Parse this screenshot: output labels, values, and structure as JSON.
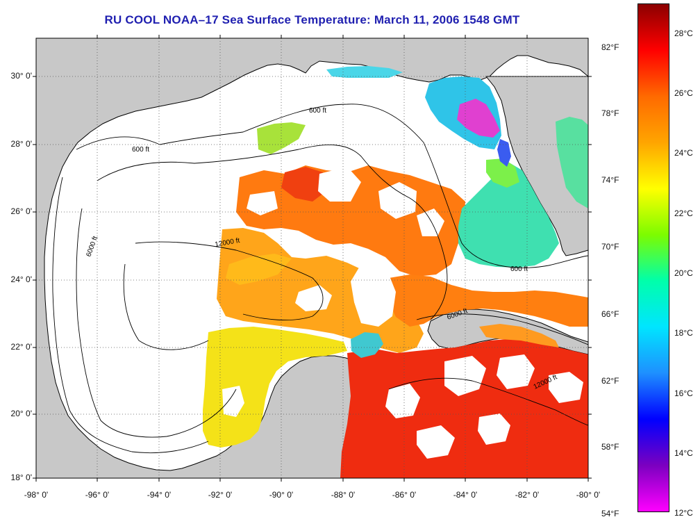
{
  "title": "RU COOL  NOAA–17  Sea Surface Temperature:  March 11, 2006 1548 GMT",
  "map": {
    "lon_range": [
      -98,
      -80
    ],
    "lat_range": [
      18,
      31
    ],
    "latitude_ticks": [
      "30° 0'",
      "28° 0'",
      "26° 0'",
      "24° 0'",
      "22° 0'",
      "20° 0'",
      "18° 0'"
    ],
    "longitude_ticks": [
      "-98° 0'",
      "-96° 0'",
      "-94° 0'",
      "-92° 0'",
      "-90° 0'",
      "-88° 0'",
      "-86° 0'",
      "-84° 0'",
      "-82° 0'",
      "-80° 0'"
    ],
    "land_color": "#c8c8c8",
    "cloud_color": "#ffffff",
    "contour_labels": [
      "600 ft",
      "6000 ft",
      "12000 ft"
    ]
  },
  "colorbar": {
    "fahrenheit_ticks": [
      "82°F",
      "78°F",
      "74°F",
      "70°F",
      "66°F",
      "62°F",
      "58°F",
      "54°F"
    ],
    "celsius_ticks": [
      "28°C",
      "26°C",
      "24°C",
      "22°C",
      "20°C",
      "18°C",
      "16°C",
      "14°C",
      "12°C"
    ],
    "gradient_colors": [
      "#8b0000",
      "#ff0000",
      "#ff6a00",
      "#ffa500",
      "#ffff00",
      "#7cfc00",
      "#00ffaa",
      "#00e5ff",
      "#1e90ff",
      "#0000ff",
      "#7b00c0",
      "#ff00ff"
    ]
  }
}
